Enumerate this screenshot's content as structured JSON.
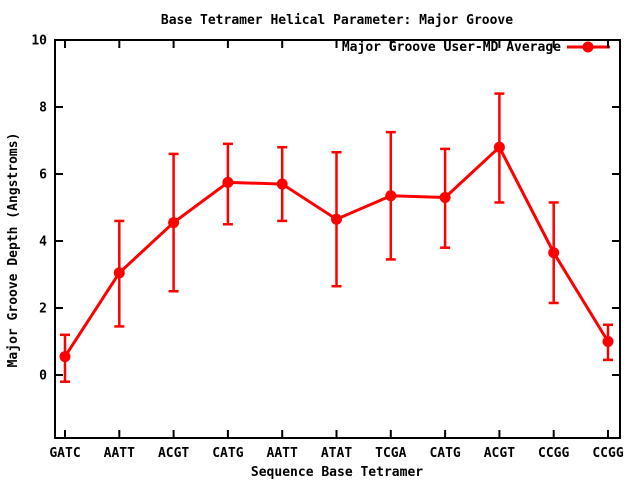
{
  "chart_data": {
    "type": "line",
    "title": "Base Tetramer Helical Parameter: Major Groove",
    "xlabel": "Sequence Base Tetramer",
    "ylabel": "Major Groove Depth (Angstroms)",
    "categories": [
      "GATC",
      "AATT",
      "ACGT",
      "CATG",
      "AATT",
      "ATAT",
      "TCGA",
      "CATG",
      "ACGT",
      "CCGG",
      "CCGG"
    ],
    "series": [
      {
        "name": "Major Groove User-MD Average",
        "color": "#ff0000",
        "marker": "filled-circle",
        "values": [
          0.55,
          3.05,
          4.55,
          5.75,
          5.7,
          4.65,
          5.35,
          5.3,
          6.8,
          3.65,
          1.0
        ],
        "err_low": [
          -0.2,
          1.45,
          2.5,
          4.5,
          4.6,
          2.65,
          3.45,
          3.8,
          5.15,
          2.15,
          0.45
        ],
        "err_high": [
          1.2,
          4.6,
          6.6,
          6.9,
          6.8,
          6.65,
          7.25,
          6.75,
          8.4,
          5.15,
          1.5
        ]
      }
    ],
    "yticks": [
      0,
      2,
      4,
      6,
      8,
      10
    ],
    "ylim_labeled": [
      0,
      10
    ],
    "grid": false,
    "legend_position": "top-right-inside",
    "error_bars": "vertical-with-caps"
  },
  "colors": {
    "series": "#ff0000",
    "axis": "#000000",
    "background": "#ffffff"
  }
}
